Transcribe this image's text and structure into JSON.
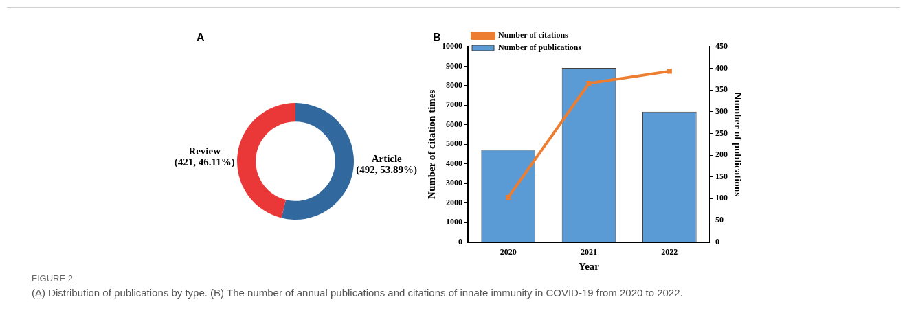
{
  "chart_data": [
    {
      "type": "donut",
      "title": "A",
      "categories": [
        "Article",
        "Review"
      ],
      "values": [
        492,
        421
      ],
      "colors": [
        "#31699e",
        "#ea3838"
      ],
      "value_labels": [
        "(492, 53.89%)",
        "(421, 46.11%)"
      ]
    },
    {
      "type": "bar",
      "title": "B",
      "categories": [
        "2020",
        "2021",
        "2022"
      ],
      "xlabel": "Year",
      "ylabel": "Number of citation times",
      "y2label": "Number of publications",
      "ylim": [
        0,
        10000
      ],
      "yticks": [
        0,
        1000,
        2000,
        3000,
        4000,
        5000,
        6000,
        7000,
        8000,
        9000,
        10000
      ],
      "y2lim": [
        0,
        450
      ],
      "y2ticks": [
        0,
        50,
        100,
        150,
        200,
        250,
        300,
        350,
        400,
        450
      ],
      "legend": "top left",
      "marker": "square",
      "grid": false,
      "series": [
        {
          "name": "Number of publications",
          "type": "bar",
          "axis": "y2",
          "color": "#5b9bd5",
          "values": [
            212,
            401,
            300
          ]
        },
        {
          "name": "Number of citations",
          "type": "line",
          "axis": "y",
          "color": "#ed7d31",
          "values": [
            2290,
            8120,
            8740
          ]
        }
      ],
      "annotations": [
        "FIGURE 2",
        "(A) Distribution of publications by type. (B) The number of annual publications and citations of innate immunity in COVID-19 from 2020 to 2022."
      ]
    }
  ]
}
